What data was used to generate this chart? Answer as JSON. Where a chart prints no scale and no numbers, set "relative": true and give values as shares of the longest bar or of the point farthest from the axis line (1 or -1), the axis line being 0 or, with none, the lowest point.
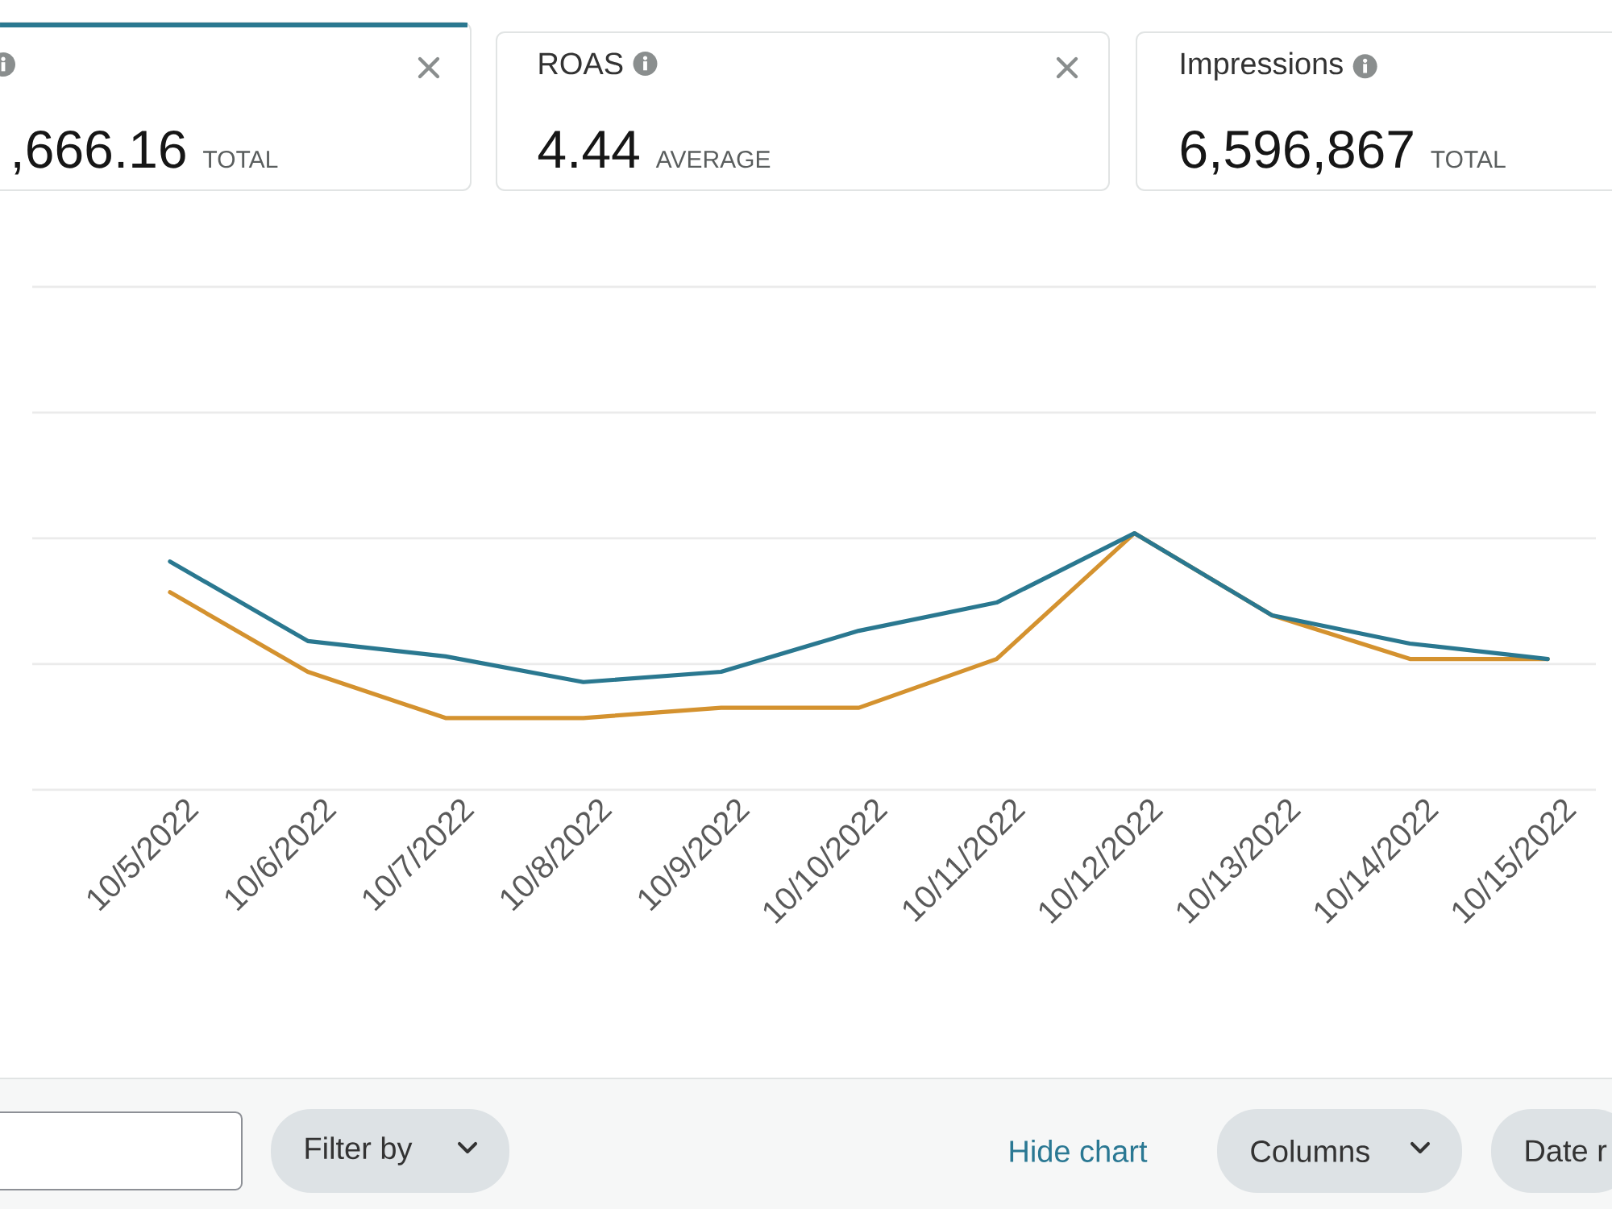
{
  "chart_data": [
    {
      "type": "other",
      "annotations": [
        ",666.16",
        "TOTAL"
      ]
    },
    {
      "type": "other",
      "title": "ROAS",
      "annotations": [
        "4.44",
        "AVERAGE"
      ]
    },
    {
      "type": "other",
      "title": "Impressions",
      "annotations": [
        "6,596,867",
        "TOTAL"
      ]
    },
    {
      "type": "line",
      "categories": [
        "10/5/2022",
        "10/6/2022",
        "10/7/2022",
        "10/8/2022",
        "10/9/2022",
        "10/10/2022",
        "10/11/2022",
        "10/12/2022",
        "10/13/2022",
        "10/14/2022",
        "10/15/2022"
      ],
      "relative": true,
      "ref_lines": [
        {
          "axis": "y",
          "value": 0.49,
          "color": "#ebebeb"
        },
        {
          "axis": "y",
          "value": 0.98,
          "color": "#ebebeb"
        }
      ],
      "series": [
        {
          "color": "#d4922f",
          "values": [
            0.77,
            0.46,
            0.28,
            0.28,
            0.32,
            0.32,
            0.51,
            1,
            0.68,
            0.51,
            0.51
          ]
        },
        {
          "color": "#2a7890",
          "values": [
            0.89,
            0.58,
            0.52,
            0.42,
            0.46,
            0.62,
            0.73,
            1,
            0.68,
            0.57,
            0.51
          ]
        }
      ]
    },
    {
      "type": "other",
      "annotations": [
        "Filter by",
        "Hide chart",
        "Columns",
        "Date r"
      ]
    }
  ]
}
